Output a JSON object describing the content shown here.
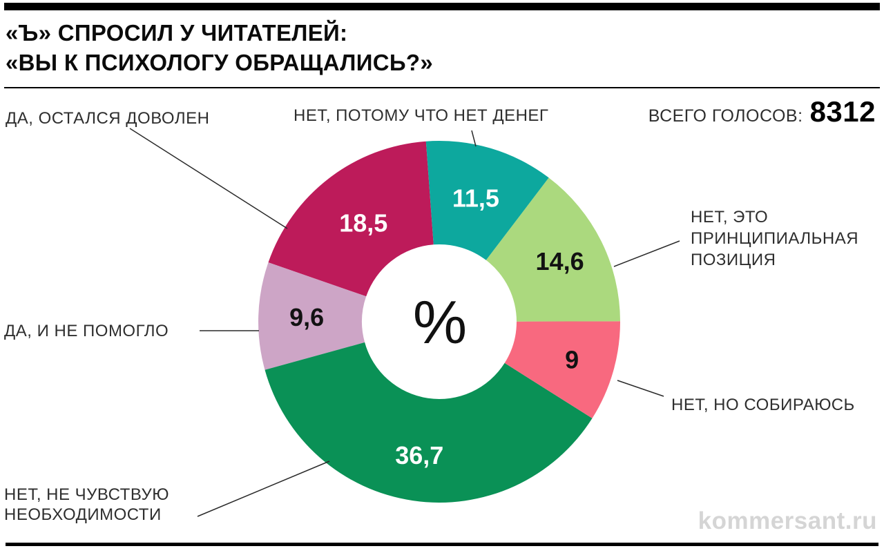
{
  "header": {
    "top_title_line1": "«Ъ» СПРОСИЛ У ЧИТАТЕЛЕЙ:",
    "top_title_line2": "«ВЫ К ПСИХОЛОГУ ОБРАЩАЛИСЬ?»",
    "total_votes_label": "ВСЕГО ГОЛОСОВ:",
    "total_votes_value": "8312"
  },
  "chart_data": {
    "type": "pie",
    "subtype": "donut",
    "title": "«Ъ» СПРОСИЛ У ЧИТАТЕЛЕЙ: «ВЫ К ПСИХОЛОГУ ОБРАЩАЛИСЬ?»",
    "unit": "%",
    "center_symbol": "%",
    "total_votes": 8312,
    "start_angle_deg": -4.2,
    "clockwise": true,
    "legend_position": "callout-labels",
    "slices": [
      {
        "key": "no-money",
        "label": "НЕТ, ПОТОМУ ЧТО НЕТ ДЕНЕГ",
        "value": 11.5,
        "display": "11,5",
        "color": "#0da89e",
        "value_text_color": "#ffffff",
        "label_r": 186
      },
      {
        "key": "principled",
        "label": "НЕТ, ЭТО ПРИНЦИПИАЛЬНАЯ ПОЗИЦИЯ",
        "value": 14.6,
        "display": "14,6",
        "color": "#abd97e",
        "value_text_color": "#121212",
        "label_r": 195
      },
      {
        "key": "planning",
        "label": "НЕТ, НО СОБИРАЮСЬ",
        "value": 9,
        "display": "9",
        "color": "#f8697f",
        "value_text_color": "#121212",
        "label_r": 200
      },
      {
        "key": "no-need",
        "label": "НЕТ, НЕ ЧУВСТВУЮ НЕОБХОДИМОСТИ",
        "value": 36.7,
        "display": "36,7",
        "color": "#0a9156",
        "value_text_color": "#ffffff",
        "label_r": 196
      },
      {
        "key": "did-not-help",
        "label": "ДА, И НЕ ПОМОГЛО",
        "value": 9.6,
        "display": "9,6",
        "color": "#cda5c6",
        "value_text_color": "#121212",
        "label_r": 192
      },
      {
        "key": "satisfied",
        "label": "ДА, ОСТАЛСЯ ДОВОЛЕН",
        "value": 18.5,
        "display": "18,5",
        "color": "#bd1b5a",
        "value_text_color": "#ffffff",
        "label_r": 180
      }
    ]
  },
  "callouts": {
    "satisfied": "ДА, ОСТАЛСЯ ДОВОЛЕН",
    "no_money": "НЕТ, ПОТОМУ ЧТО НЕТ ДЕНЕГ",
    "principled_lines": [
      "НЕТ, ЭТО",
      "ПРИНЦИПИАЛЬНАЯ",
      "ПОЗИЦИЯ"
    ],
    "planning": "НЕТ, НО СОБИРАЮСЬ",
    "did_not_help": "ДА, И НЕ ПОМОГЛО",
    "no_need_lines": [
      "НЕТ, НЕ ЧУВСТВУЮ",
      "НЕОБХОДИМОСТИ"
    ]
  },
  "footer": {
    "watermark": "kommersant.ru"
  },
  "colors": {
    "accent_bar": "#000000",
    "label_text": "#2e2e2e",
    "callout_line": "#2a2a2a",
    "watermark": "#d5d5d5"
  }
}
